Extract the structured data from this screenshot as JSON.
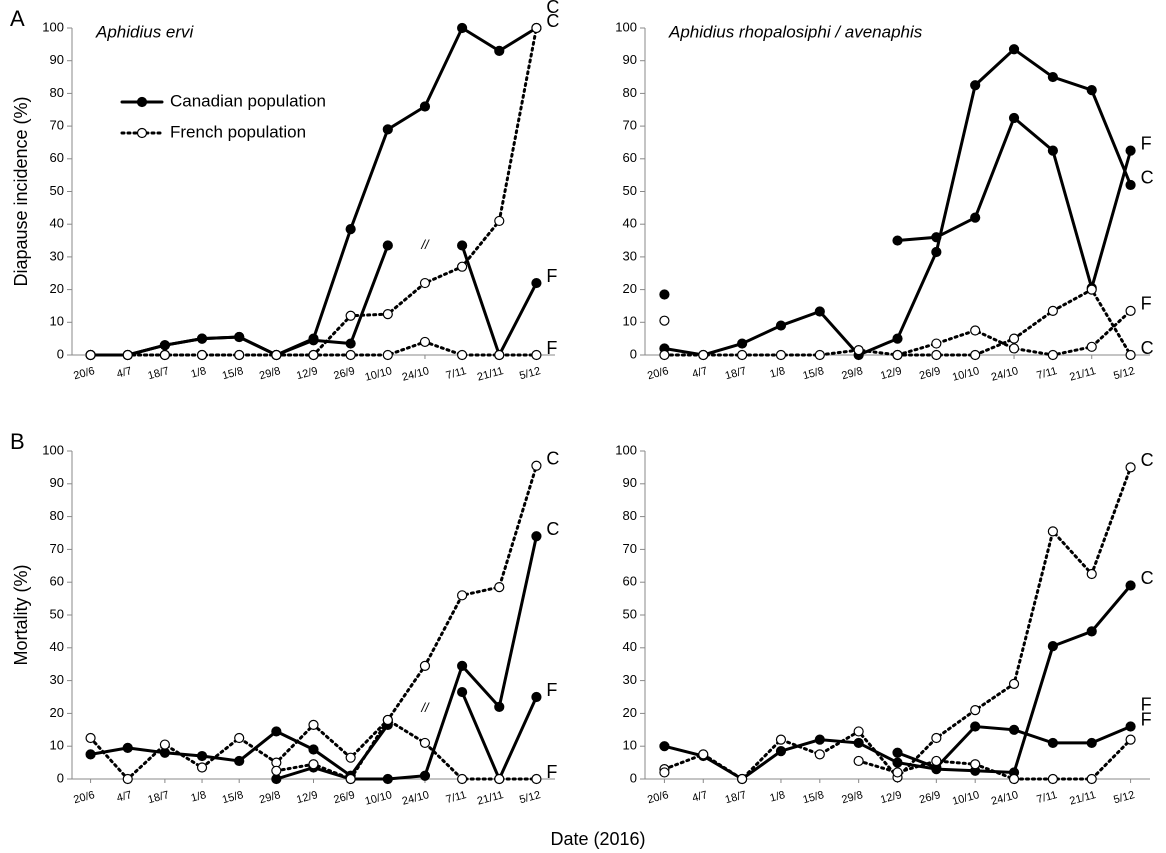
{
  "xlabel": "Date (2016)",
  "chart_data": [
    {
      "type": "line",
      "panel_label": "A",
      "title": "Aphidius ervi",
      "ylabel": "Diapause incidence (%)",
      "break_label": "//",
      "categories": [
        "20/6",
        "4/7",
        "18/7",
        "1/8",
        "15/8",
        "29/8",
        "12/9",
        "26/9",
        "10/10",
        "24/10",
        "7/11",
        "21/11",
        "5/12"
      ],
      "ylim": [
        0,
        100
      ],
      "yticks": [
        0,
        10,
        20,
        30,
        40,
        50,
        60,
        70,
        80,
        90,
        100
      ],
      "series": [
        {
          "name": "Canadian population",
          "end_label": "C",
          "color": "#000000",
          "line_style": "solid",
          "marker_fill": "#000000",
          "values": [
            0,
            0,
            3,
            5,
            5.5,
            0,
            5,
            38.5,
            69,
            76,
            100,
            93,
            100
          ]
        },
        {
          "name": "Canadian population",
          "end_label": "F",
          "color": "#000000",
          "line_style": "solid",
          "marker_fill": "#000000",
          "values": [
            0,
            0,
            3,
            5,
            5.5,
            0,
            4.5,
            3.5,
            33.5,
            null,
            33.5,
            0,
            22
          ]
        },
        {
          "name": "French population",
          "end_label": "C",
          "color": "#000000",
          "line_style": "dotted",
          "marker_fill": "#ffffff",
          "values": [
            0,
            0,
            0,
            0,
            0,
            0,
            0,
            12,
            12.5,
            22,
            27,
            41,
            100
          ]
        },
        {
          "name": "French population",
          "end_label": "F",
          "color": "#000000",
          "line_style": "dotted",
          "marker_fill": "#ffffff",
          "values": [
            0,
            0,
            0,
            0,
            0,
            0,
            0,
            0,
            0,
            4,
            0,
            0,
            0
          ]
        }
      ]
    },
    {
      "type": "line",
      "title": "Aphidius rhopalosiphi / avenaphis",
      "categories": [
        "20/6",
        "4/7",
        "18/7",
        "1/8",
        "15/8",
        "29/8",
        "12/9",
        "26/9",
        "10/10",
        "24/10",
        "7/11",
        "21/11",
        "5/12"
      ],
      "ylim": [
        0,
        100
      ],
      "yticks": [
        0,
        10,
        20,
        30,
        40,
        50,
        60,
        70,
        80,
        90,
        100
      ],
      "series": [
        {
          "name": "Canadian population",
          "end_label": "C",
          "color": "#000000",
          "line_style": "solid",
          "marker_fill": "#000000",
          "values": [
            2,
            0,
            3.5,
            9,
            13.3,
            0,
            5,
            31.5,
            82.5,
            93.5,
            85,
            81,
            52
          ]
        },
        {
          "name": "Canadian population",
          "end_label": "F",
          "color": "#000000",
          "line_style": "solid",
          "marker_fill": "#000000",
          "values": [
            18.5,
            null,
            null,
            null,
            null,
            null,
            35,
            36,
            42,
            72.5,
            62.5,
            20.5,
            62.5
          ]
        },
        {
          "name": "French population",
          "end_label": "C",
          "color": "#000000",
          "line_style": "dotted",
          "marker_fill": "#ffffff",
          "values": [
            10.5,
            null,
            null,
            null,
            null,
            null,
            0,
            0,
            0,
            5,
            13.5,
            20,
            0
          ]
        },
        {
          "name": "French population",
          "end_label": "F",
          "color": "#000000",
          "line_style": "dotted",
          "marker_fill": "#ffffff",
          "values": [
            0,
            0,
            0,
            0,
            0,
            1.5,
            0,
            3.5,
            7.5,
            2,
            0,
            2.5,
            13.5
          ]
        }
      ]
    },
    {
      "type": "line",
      "panel_label": "B",
      "ylabel": "Mortality (%)",
      "break_label": "//",
      "categories": [
        "20/6",
        "4/7",
        "18/7",
        "1/8",
        "15/8",
        "29/8",
        "12/9",
        "26/9",
        "10/10",
        "24/10",
        "7/11",
        "21/11",
        "5/12"
      ],
      "ylim": [
        0,
        100
      ],
      "yticks": [
        0,
        10,
        20,
        30,
        40,
        50,
        60,
        70,
        80,
        90,
        100
      ],
      "series": [
        {
          "name": "Canadian population",
          "end_label": "C",
          "color": "#000000",
          "line_style": "solid",
          "marker_fill": "#000000",
          "values": [
            null,
            null,
            null,
            null,
            null,
            0,
            3.5,
            0,
            0,
            1,
            34.5,
            22,
            74
          ]
        },
        {
          "name": "Canadian population",
          "end_label": "F",
          "color": "#000000",
          "line_style": "solid",
          "marker_fill": "#000000",
          "values": [
            7.5,
            9.5,
            8,
            7,
            5.5,
            14.5,
            9,
            1,
            16.5,
            null,
            26.5,
            0,
            25
          ]
        },
        {
          "name": "French population",
          "end_label": "C",
          "color": "#000000",
          "line_style": "dotted",
          "marker_fill": "#ffffff",
          "values": [
            12.5,
            0,
            10.5,
            3.5,
            12.5,
            5,
            16.5,
            6.5,
            18,
            34.5,
            56,
            58.5,
            95.5
          ]
        },
        {
          "name": "French population",
          "end_label": "F",
          "color": "#000000",
          "line_style": "dotted",
          "marker_fill": "#ffffff",
          "values": [
            null,
            null,
            null,
            null,
            null,
            2.5,
            4.5,
            0,
            18,
            11,
            0,
            0,
            0
          ]
        }
      ]
    },
    {
      "type": "line",
      "categories": [
        "20/6",
        "4/7",
        "18/7",
        "1/8",
        "15/8",
        "29/8",
        "12/9",
        "26/9",
        "10/10",
        "24/10",
        "7/11",
        "21/11",
        "5/12"
      ],
      "ylim": [
        0,
        100
      ],
      "yticks": [
        0,
        10,
        20,
        30,
        40,
        50,
        60,
        70,
        80,
        90,
        100
      ],
      "series": [
        {
          "name": "Canadian population",
          "end_label": "C",
          "color": "#000000",
          "line_style": "solid",
          "marker_fill": "#000000",
          "values": [
            10,
            7,
            0,
            8.5,
            12,
            11,
            5,
            3,
            2.5,
            2,
            40.5,
            45,
            59
          ]
        },
        {
          "name": "Canadian population",
          "end_label": "F",
          "color": "#000000",
          "line_style": "solid",
          "marker_fill": "#000000",
          "values": [
            null,
            null,
            null,
            null,
            null,
            null,
            8,
            3.5,
            16,
            15,
            11,
            11,
            16
          ]
        },
        {
          "name": "French population",
          "end_label": "C",
          "color": "#000000",
          "line_style": "dotted",
          "marker_fill": "#ffffff",
          "values": [
            3,
            7.5,
            0,
            12,
            7.5,
            14.5,
            0.5,
            12.5,
            21,
            29,
            75.5,
            62.5,
            95
          ]
        },
        {
          "name": "French population",
          "end_label": "F",
          "color": "#000000",
          "line_style": "dotted",
          "marker_fill": "#ffffff",
          "values": [
            2,
            null,
            null,
            null,
            null,
            5.5,
            2,
            5.5,
            4.5,
            0,
            0,
            0,
            12
          ]
        }
      ]
    }
  ]
}
